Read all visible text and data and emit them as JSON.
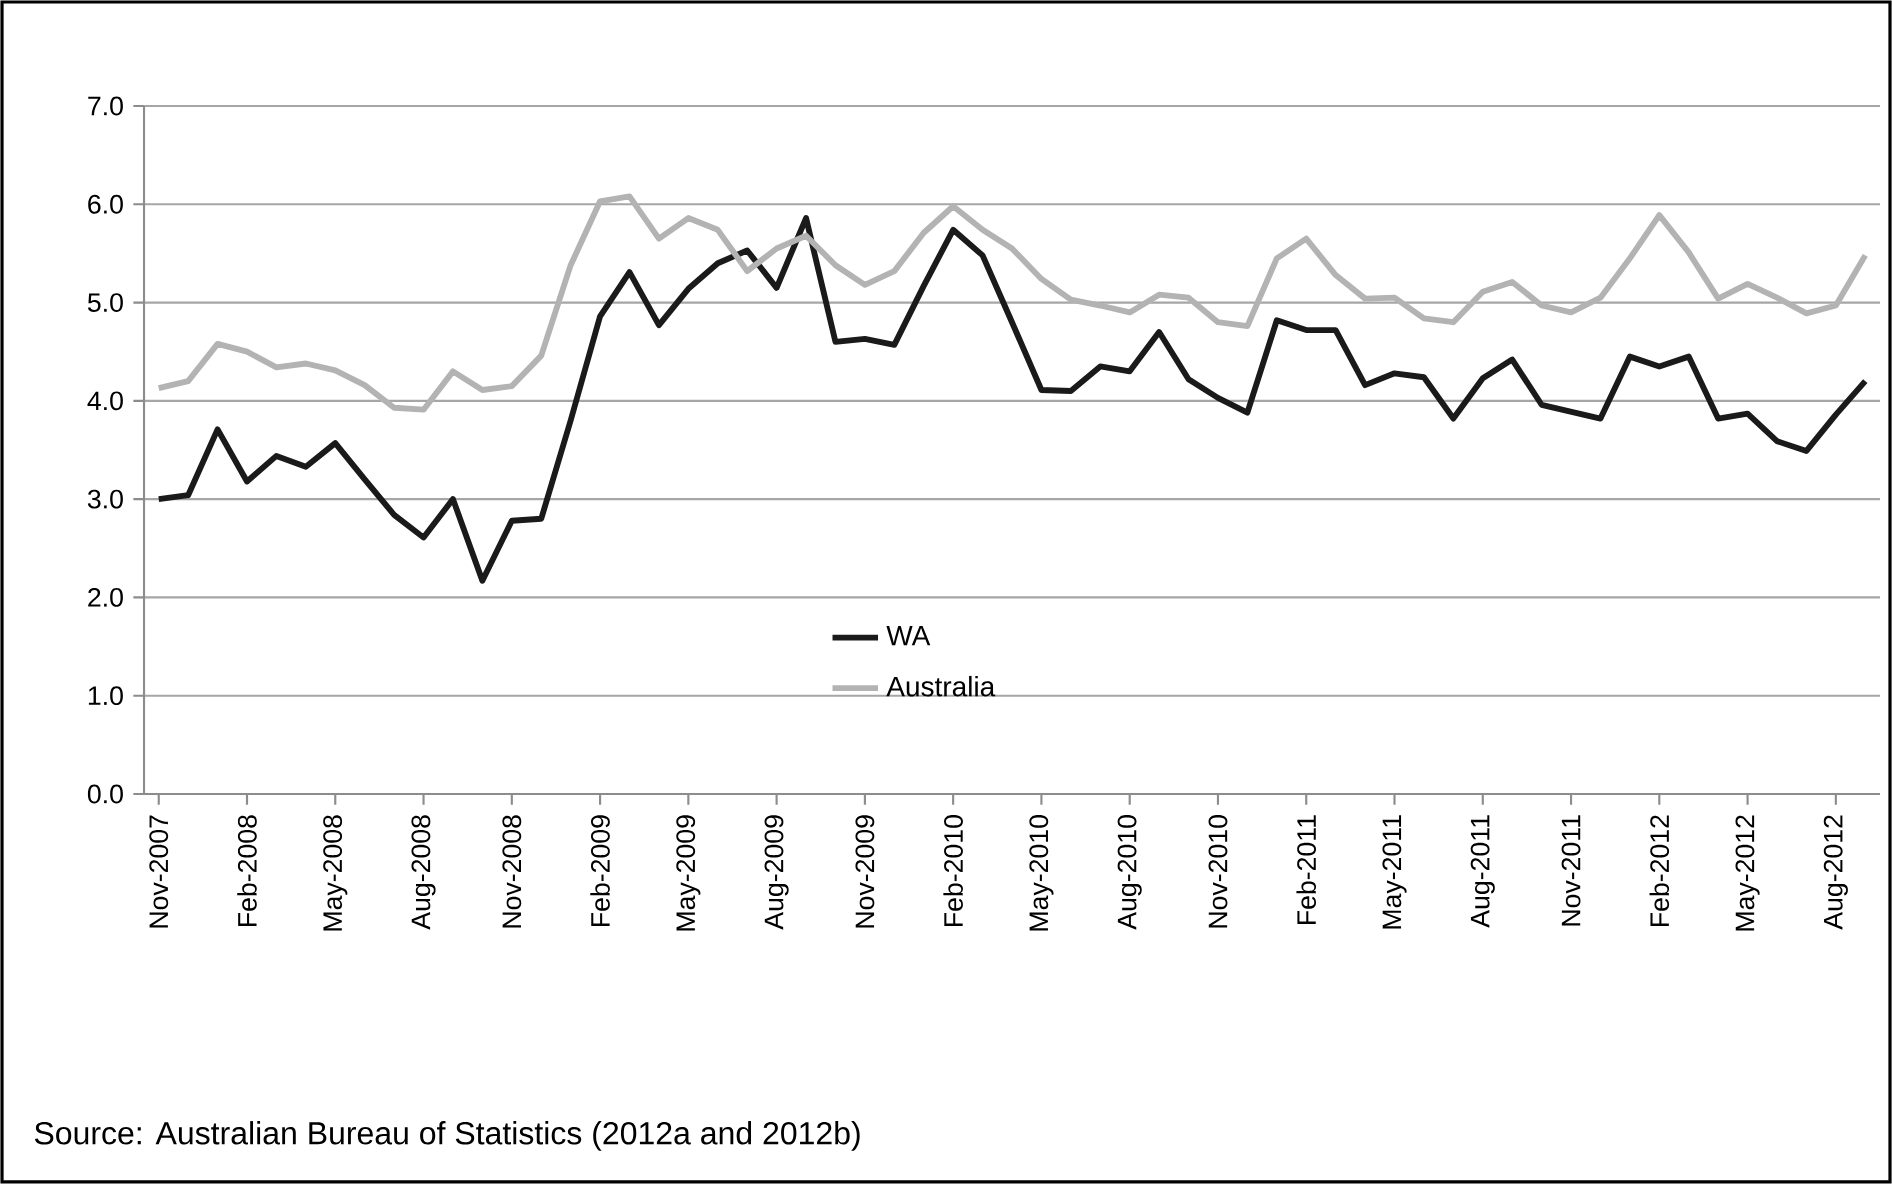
{
  "chart_data": {
    "type": "line",
    "categories": [
      "Nov-2007",
      null,
      null,
      "Feb-2008",
      null,
      null,
      "May-2008",
      null,
      null,
      "Aug-2008",
      null,
      null,
      "Nov-2008",
      null,
      null,
      "Feb-2009",
      null,
      null,
      "May-2009",
      null,
      null,
      "Aug-2009",
      null,
      null,
      "Nov-2009",
      null,
      null,
      "Feb-2010",
      null,
      null,
      "May-2010",
      null,
      null,
      "Aug-2010",
      null,
      null,
      "Nov-2010",
      null,
      null,
      "Feb-2011",
      null,
      null,
      "May-2011",
      null,
      null,
      "Aug-2011",
      null,
      null,
      "Nov-2011",
      null,
      null,
      "Feb-2012",
      null,
      null,
      "May-2012",
      null,
      null,
      "Aug-2012",
      null
    ],
    "series": [
      {
        "name": "WA",
        "color": "#1a1a1a",
        "values": [
          3.0,
          3.04,
          3.71,
          3.18,
          3.44,
          3.33,
          3.57,
          3.2,
          2.84,
          2.61,
          3.0,
          2.17,
          2.78,
          2.8,
          3.8,
          4.86,
          5.31,
          4.77,
          5.14,
          5.4,
          5.53,
          5.15,
          5.86,
          4.6,
          4.63,
          4.57,
          5.17,
          5.74,
          5.48,
          4.8,
          4.11,
          4.1,
          4.35,
          4.3,
          4.7,
          4.22,
          4.03,
          3.88,
          4.82,
          4.72,
          4.72,
          4.16,
          4.28,
          4.24,
          3.82,
          4.23,
          4.42,
          3.96,
          3.89,
          3.82,
          4.45,
          4.35,
          4.45,
          3.82,
          3.87,
          3.59,
          3.49,
          3.86,
          4.2
        ]
      },
      {
        "name": "Australia",
        "color": "#b3b3b3",
        "values": [
          4.13,
          4.2,
          4.58,
          4.5,
          4.34,
          4.38,
          4.31,
          4.16,
          3.93,
          3.91,
          4.3,
          4.11,
          4.15,
          4.46,
          5.38,
          6.03,
          6.08,
          5.65,
          5.86,
          5.74,
          5.32,
          5.55,
          5.68,
          5.38,
          5.18,
          5.32,
          5.71,
          5.98,
          5.74,
          5.55,
          5.24,
          5.03,
          4.97,
          4.9,
          5.08,
          5.05,
          4.8,
          4.76,
          5.45,
          5.65,
          5.28,
          5.04,
          5.05,
          4.84,
          4.8,
          5.11,
          5.21,
          4.97,
          4.9,
          5.05,
          5.45,
          5.89,
          5.51,
          5.04,
          5.19,
          5.05,
          4.89,
          4.97,
          5.48
        ]
      }
    ],
    "ylim": [
      0,
      7
    ],
    "yticks": [
      {
        "value": 0,
        "label": "0.0"
      },
      {
        "value": 1,
        "label": "1.0"
      },
      {
        "value": 2,
        "label": "2.0"
      },
      {
        "value": 3,
        "label": "3.0"
      },
      {
        "value": 4,
        "label": "4.0"
      },
      {
        "value": 5,
        "label": "5.0"
      },
      {
        "value": 6,
        "label": "6.0"
      },
      {
        "value": 7,
        "label": "7.0"
      }
    ],
    "grid": "y",
    "legend": "bottom",
    "annotations": [
      "Source: Australian Bureau of Statistics (2012a and 2012b)"
    ]
  }
}
